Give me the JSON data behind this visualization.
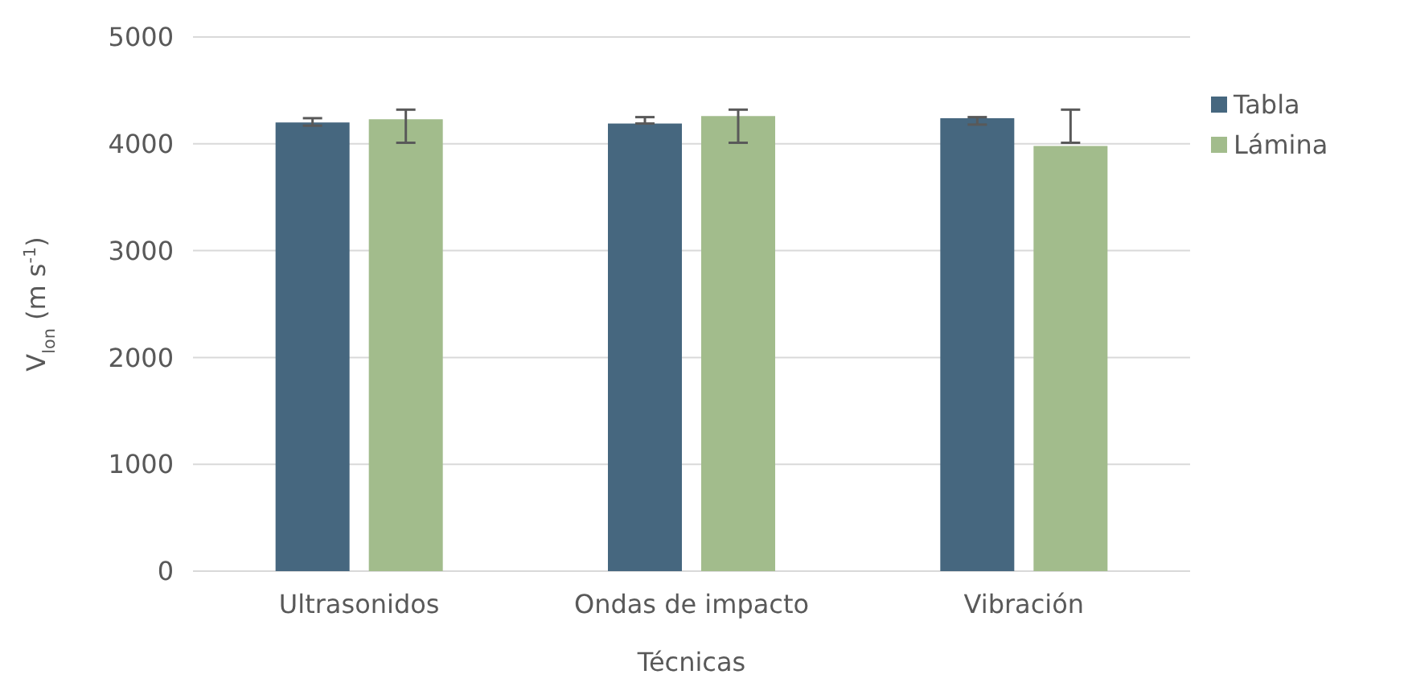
{
  "chart_data": {
    "type": "bar",
    "xlabel": "Técnicas",
    "ylabel": "V$_{lon}$ (m s$^{-1}$)",
    "categories": [
      "Ultrasonidos",
      "Ondas de impacto",
      "Vibración"
    ],
    "series": [
      {
        "name": "Tabla",
        "color": "#46677f",
        "values": [
          4200,
          4190,
          4240
        ],
        "errors": [
          [
            4170,
            4240
          ],
          [
            4190,
            4250
          ],
          [
            4180,
            4250
          ]
        ]
      },
      {
        "name": "Lámina",
        "color": "#a2bc8c",
        "values": [
          4230,
          4260,
          3980
        ],
        "errors": [
          [
            4010,
            4320
          ],
          [
            4010,
            4320
          ],
          [
            4010,
            4320
          ]
        ]
      }
    ],
    "ylim": [
      0,
      5000
    ],
    "yticks": [
      0,
      1000,
      2000,
      3000,
      4000,
      5000
    ],
    "grid": "y",
    "legend": "right"
  }
}
